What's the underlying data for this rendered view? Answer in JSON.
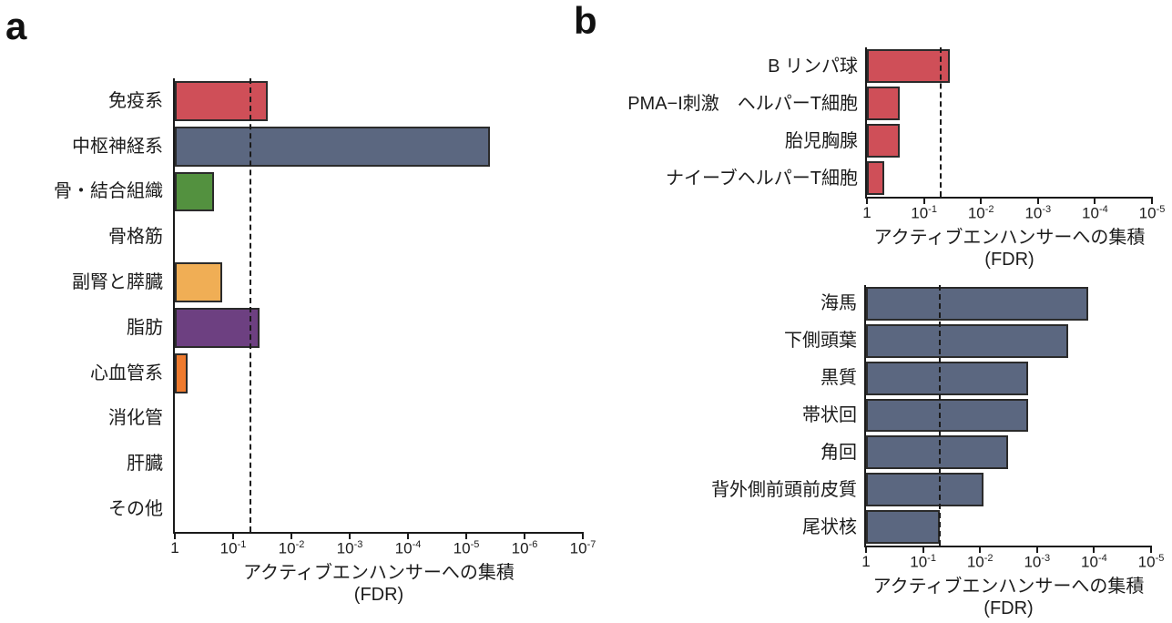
{
  "figure": {
    "panel_a_label": "a",
    "panel_b_label": "b"
  },
  "threshold": {
    "fdr": 0.05
  },
  "chart_data": [
    {
      "id": "panel-a-tissues",
      "type": "bar",
      "orientation": "horizontal",
      "x_scale": "log10 reversed (1 at left to 1e-7 at right)",
      "xlim": [
        1,
        1e-07
      ],
      "grid": false,
      "tick_exponents": [
        0,
        -1,
        -2,
        -3,
        -4,
        -5,
        -6,
        -7
      ],
      "tick_labels": [
        "1",
        "10^-1",
        "10^-2",
        "10^-3",
        "10^-4",
        "10^-5",
        "10^-6",
        "10^-7"
      ],
      "xlabel": "アクティブエンハンサーへの集積",
      "xlabel2": "(FDR)",
      "threshold_fdr": 0.05,
      "categories": [
        "免疫系",
        "中枢神経系",
        "骨・結合組織",
        "骨格筋",
        "副腎と膵臓",
        "脂肪",
        "心血管系",
        "消化管",
        "肝臓",
        "その他"
      ],
      "values_fdr": [
        0.025,
        4e-06,
        0.21,
        1,
        0.155,
        0.035,
        0.6,
        1,
        1,
        1
      ],
      "values_log10_fdr": [
        -1.6,
        -5.4,
        -0.67,
        0,
        -0.81,
        -1.45,
        -0.22,
        0,
        0,
        0
      ],
      "bar_colors": [
        "#cf4f58",
        "#5b6780",
        "#53913f",
        null,
        "#f0ae55",
        "#6d4081",
        "#ee7a2e",
        null,
        null,
        null
      ]
    },
    {
      "id": "panel-b-immune-cells",
      "type": "bar",
      "orientation": "horizontal",
      "x_scale": "log10 reversed (1 at left to 1e-5 at right)",
      "xlim": [
        1,
        1e-05
      ],
      "grid": false,
      "tick_exponents": [
        0,
        -1,
        -2,
        -3,
        -4,
        -5
      ],
      "tick_labels": [
        "1",
        "10^-1",
        "10^-2",
        "10^-3",
        "10^-4",
        "10^-5"
      ],
      "xlabel": "アクティブエンハンサーへの集積",
      "xlabel2": "(FDR)",
      "threshold_fdr": 0.05,
      "categories": [
        "B リンパ球",
        "PMA−I刺激　ヘルパーT細胞",
        "胎児胸腺",
        "ナイーブヘルパーT細胞"
      ],
      "values_fdr": [
        0.035,
        0.27,
        0.27,
        0.5
      ],
      "values_log10_fdr": [
        -1.46,
        -0.57,
        -0.57,
        -0.3
      ],
      "bar_color": "#cf4f58"
    },
    {
      "id": "panel-b-brain-regions",
      "type": "bar",
      "orientation": "horizontal",
      "x_scale": "log10 reversed (1 at left to 1e-5 at right)",
      "xlim": [
        1,
        1e-05
      ],
      "grid": false,
      "tick_exponents": [
        0,
        -1,
        -2,
        -3,
        -4,
        -5
      ],
      "tick_labels": [
        "1",
        "10^-1",
        "10^-2",
        "10^-3",
        "10^-4",
        "10^-5"
      ],
      "xlabel": "アクティブエンハンサーへの集積",
      "xlabel2": "(FDR)",
      "threshold_fdr": 0.05,
      "categories": [
        "海馬",
        "下側頭葉",
        "黒質",
        "帯状回",
        "角回",
        "背外側前頭前皮質",
        "尾状核"
      ],
      "values_fdr": [
        0.00013,
        0.00028,
        0.0014,
        0.0014,
        0.0032,
        0.0087,
        0.05
      ],
      "values_log10_fdr": [
        -3.89,
        -3.55,
        -2.85,
        -2.85,
        -2.49,
        -2.06,
        -1.3
      ],
      "bar_color": "#5b6780"
    }
  ]
}
